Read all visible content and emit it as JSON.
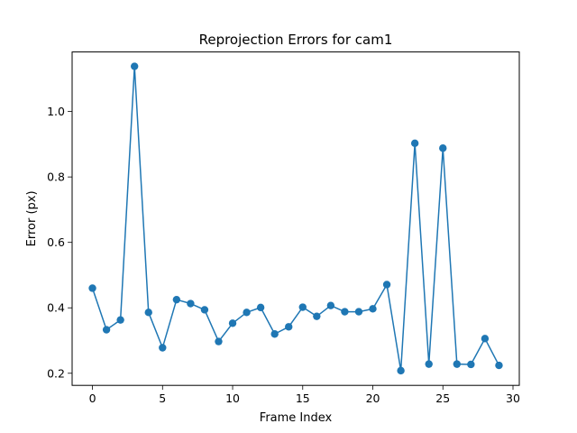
{
  "chart_data": {
    "type": "line",
    "title": "Reprojection Errors for cam1",
    "xlabel": "Frame Index",
    "ylabel": "Error (px)",
    "xlim": [
      -1.45,
      30.45
    ],
    "ylim": [
      0.163,
      1.182
    ],
    "xticks": [
      0,
      5,
      10,
      15,
      20,
      25,
      30
    ],
    "yticks": [
      0.2,
      0.4,
      0.6,
      0.8,
      1.0
    ],
    "ytick_labels": [
      "0.2",
      "0.4",
      "0.6",
      "0.8",
      "1.0"
    ],
    "grid": false,
    "marker": "circle",
    "series": [
      {
        "color": "#1f77b4",
        "x": [
          0,
          1,
          2,
          3,
          4,
          5,
          6,
          7,
          8,
          9,
          10,
          11,
          12,
          13,
          14,
          15,
          16,
          17,
          18,
          19,
          20,
          21,
          22,
          23,
          24,
          25,
          26,
          27,
          28,
          29
        ],
        "y": [
          0.46,
          0.333,
          0.363,
          1.138,
          0.386,
          0.278,
          0.425,
          0.413,
          0.394,
          0.297,
          0.353,
          0.386,
          0.401,
          0.32,
          0.342,
          0.402,
          0.374,
          0.407,
          0.388,
          0.388,
          0.397,
          0.471,
          0.208,
          0.903,
          0.228,
          0.888,
          0.228,
          0.227,
          0.306,
          0.224
        ]
      }
    ]
  }
}
